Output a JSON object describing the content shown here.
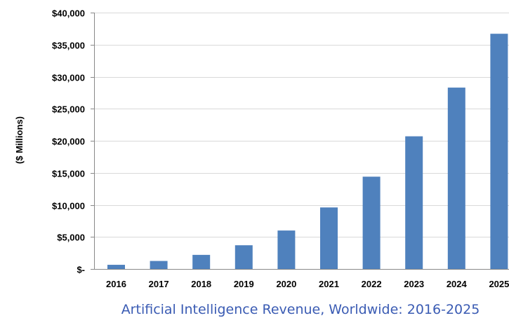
{
  "chart_data": {
    "type": "bar",
    "caption": "Artificial Intelligence Revenue, Worldwide: 2016-2025",
    "ylabel": "($ Millions)",
    "xlabel": "",
    "categories": [
      "2016",
      "2017",
      "2018",
      "2019",
      "2020",
      "2021",
      "2022",
      "2023",
      "2024",
      "2025"
    ],
    "values": [
      650,
      1250,
      2200,
      3700,
      6000,
      9600,
      14400,
      20700,
      28300,
      36700
    ],
    "ylim": [
      0,
      40000
    ],
    "yticks": [
      0,
      5000,
      10000,
      15000,
      20000,
      25000,
      30000,
      35000,
      40000
    ],
    "ytick_labels": [
      "$-",
      "$5,000",
      "$10,000",
      "$15,000",
      "$20,000",
      "$25,000",
      "$30,000",
      "$35,000",
      "$40,000"
    ],
    "grid": true,
    "bar_color": "#4f81bd",
    "caption_color": "#3a5bb3"
  }
}
